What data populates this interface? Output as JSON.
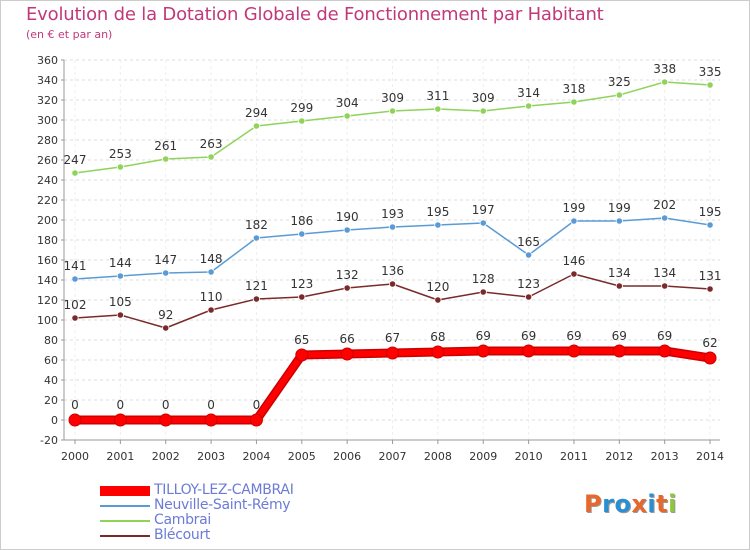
{
  "title": "Evolution de la Dotation Globale de Fonctionnement par Habitant",
  "subtitle": "(en € et par an)",
  "logo": {
    "text": "Proxiti",
    "colors": [
      "#e8672a",
      "#2a8fd0",
      "#2a8fd0",
      "#e8672a",
      "#2a8fd0",
      "#e8672a",
      "#8fc640"
    ]
  },
  "chart_data": {
    "type": "line",
    "title": "Evolution de la Dotation Globale de Fonctionnement par Habitant",
    "subtitle": "(en € et par an)",
    "x": [
      "2000",
      "2001",
      "2002",
      "2003",
      "2004",
      "2005",
      "2006",
      "2007",
      "2008",
      "2009",
      "2010",
      "2011",
      "2012",
      "2013",
      "2014"
    ],
    "ylim": [
      -20,
      360
    ],
    "yticks": [
      -20,
      0,
      20,
      40,
      60,
      80,
      100,
      120,
      140,
      160,
      180,
      200,
      220,
      240,
      260,
      280,
      300,
      320,
      340,
      360
    ],
    "grid": true,
    "legend_position": "bottom-left",
    "series": [
      {
        "name": "TILLOY-LEZ-CAMBRAI",
        "color": "#ff0000",
        "values": [
          0,
          0,
          0,
          0,
          0,
          65,
          66,
          67,
          68,
          69,
          69,
          69,
          69,
          69,
          62
        ],
        "labels": [
          "0",
          "0",
          "0",
          "0",
          "0",
          "65",
          "66",
          "67",
          "68",
          "69",
          "69",
          "69",
          "69",
          "69",
          "62"
        ]
      },
      {
        "name": "Neuville-Saint-Rémy",
        "color": "#5b9bd5",
        "values": [
          141,
          144,
          147,
          148,
          182,
          186,
          190,
          193,
          195,
          197,
          165,
          199,
          199,
          202,
          195
        ],
        "labels": [
          "141",
          "144",
          "147",
          "148",
          "182",
          "186",
          "190",
          "193",
          "195",
          "197",
          "165",
          "199",
          "199",
          "202",
          "195"
        ]
      },
      {
        "name": "Cambrai",
        "color": "#8fd35a",
        "values": [
          247,
          253,
          261,
          263,
          294,
          299,
          304,
          309,
          311,
          309,
          314,
          318,
          325,
          338,
          335
        ],
        "labels": [
          "247",
          "253",
          "261",
          "263",
          "294",
          "299",
          "304",
          "309",
          "311",
          "309",
          "314",
          "318",
          "325",
          "338",
          "335"
        ]
      },
      {
        "name": "Blécourt",
        "color": "#7a2a2a",
        "values": [
          102,
          105,
          92,
          110,
          121,
          123,
          132,
          136,
          120,
          128,
          123,
          146,
          134,
          134,
          131
        ],
        "labels": [
          "102",
          "105",
          "92",
          "110",
          "121",
          "123",
          "132",
          "136",
          "120",
          "128",
          "123",
          "146",
          "134",
          "134",
          "131"
        ]
      }
    ]
  }
}
